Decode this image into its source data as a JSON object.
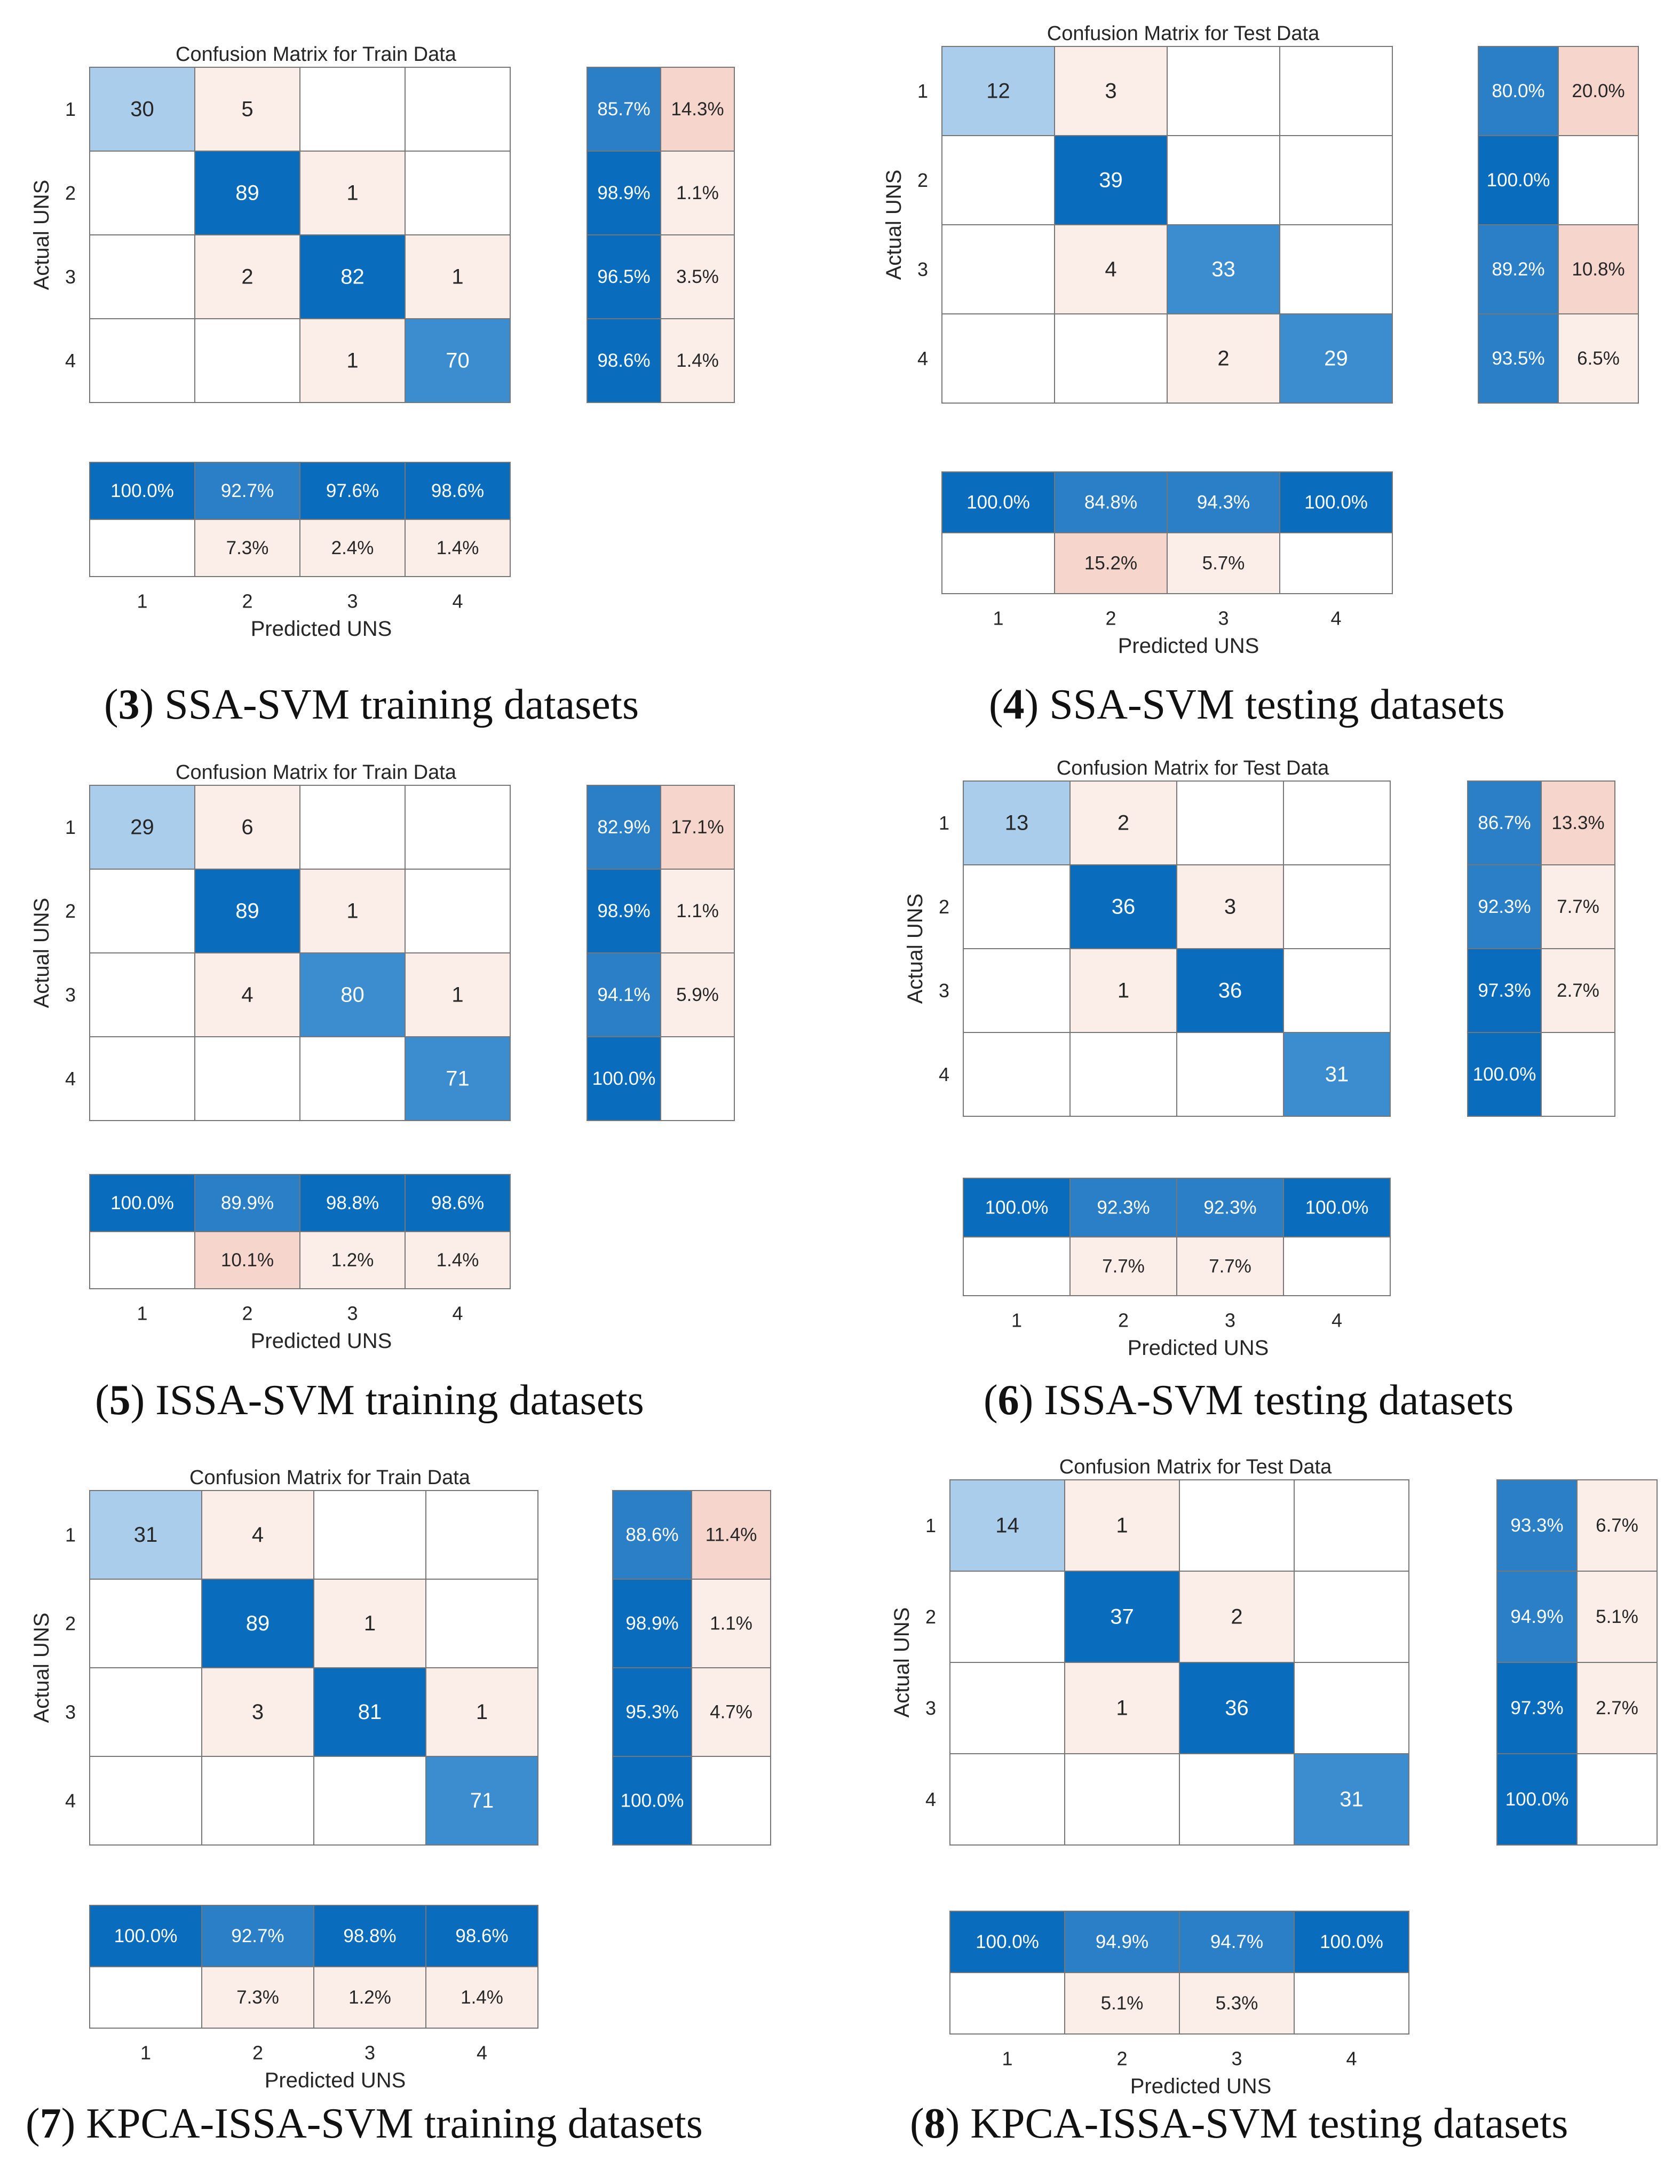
{
  "chart_data": [
    {
      "type": "heatmap",
      "title": "Confusion Matrix for Train Data",
      "xlabel": "Predicted UNS",
      "ylabel": "Actual UNS",
      "classes": [
        "1",
        "2",
        "3",
        "4"
      ],
      "matrix": [
        [
          30,
          5,
          null,
          null
        ],
        [
          null,
          89,
          1,
          null
        ],
        [
          null,
          2,
          82,
          1
        ],
        [
          null,
          null,
          1,
          70
        ]
      ],
      "row_summary": [
        [
          "85.7%",
          "14.3%"
        ],
        [
          "98.9%",
          "1.1%"
        ],
        [
          "96.5%",
          "3.5%"
        ],
        [
          "98.6%",
          "1.4%"
        ]
      ],
      "col_summary": [
        [
          "100.0%",
          ""
        ],
        [
          "92.7%",
          "7.3%"
        ],
        [
          "97.6%",
          "2.4%"
        ],
        [
          "98.6%",
          "1.4%"
        ]
      ],
      "caption": {
        "num": "3",
        "text": " SSA-SVM training datasets"
      }
    },
    {
      "type": "heatmap",
      "title": "Confusion Matrix for Test Data",
      "xlabel": "Predicted UNS",
      "ylabel": "Actual UNS",
      "classes": [
        "1",
        "2",
        "3",
        "4"
      ],
      "matrix": [
        [
          12,
          3,
          null,
          null
        ],
        [
          null,
          39,
          null,
          null
        ],
        [
          null,
          4,
          33,
          null
        ],
        [
          null,
          null,
          2,
          29
        ]
      ],
      "row_summary": [
        [
          "80.0%",
          "20.0%"
        ],
        [
          "100.0%",
          ""
        ],
        [
          "89.2%",
          "10.8%"
        ],
        [
          "93.5%",
          "6.5%"
        ]
      ],
      "col_summary": [
        [
          "100.0%",
          ""
        ],
        [
          "84.8%",
          "15.2%"
        ],
        [
          "94.3%",
          "5.7%"
        ],
        [
          "100.0%",
          ""
        ]
      ],
      "caption": {
        "num": "4",
        "text": " SSA-SVM testing datasets"
      }
    },
    {
      "type": "heatmap",
      "title": "Confusion Matrix for Train Data",
      "xlabel": "Predicted UNS",
      "ylabel": "Actual UNS",
      "classes": [
        "1",
        "2",
        "3",
        "4"
      ],
      "matrix": [
        [
          29,
          6,
          null,
          null
        ],
        [
          null,
          89,
          1,
          null
        ],
        [
          null,
          4,
          80,
          1
        ],
        [
          null,
          null,
          null,
          71
        ]
      ],
      "row_summary": [
        [
          "82.9%",
          "17.1%"
        ],
        [
          "98.9%",
          "1.1%"
        ],
        [
          "94.1%",
          "5.9%"
        ],
        [
          "100.0%",
          ""
        ]
      ],
      "col_summary": [
        [
          "100.0%",
          ""
        ],
        [
          "89.9%",
          "10.1%"
        ],
        [
          "98.8%",
          "1.2%"
        ],
        [
          "98.6%",
          "1.4%"
        ]
      ],
      "caption": {
        "num": "5",
        "text": " ISSA-SVM training datasets"
      }
    },
    {
      "type": "heatmap",
      "title": "Confusion Matrix for Test Data",
      "xlabel": "Predicted UNS",
      "ylabel": "Actual UNS",
      "classes": [
        "1",
        "2",
        "3",
        "4"
      ],
      "matrix": [
        [
          13,
          2,
          null,
          null
        ],
        [
          null,
          36,
          3,
          null
        ],
        [
          null,
          1,
          36,
          null
        ],
        [
          null,
          null,
          null,
          31
        ]
      ],
      "row_summary": [
        [
          "86.7%",
          "13.3%"
        ],
        [
          "92.3%",
          "7.7%"
        ],
        [
          "97.3%",
          "2.7%"
        ],
        [
          "100.0%",
          ""
        ]
      ],
      "col_summary": [
        [
          "100.0%",
          ""
        ],
        [
          "92.3%",
          "7.7%"
        ],
        [
          "92.3%",
          "7.7%"
        ],
        [
          "100.0%",
          ""
        ]
      ],
      "caption": {
        "num": "6",
        "text": " ISSA-SVM testing datasets"
      }
    },
    {
      "type": "heatmap",
      "title": "Confusion Matrix for Train Data",
      "xlabel": "Predicted UNS",
      "ylabel": "Actual UNS",
      "classes": [
        "1",
        "2",
        "3",
        "4"
      ],
      "matrix": [
        [
          31,
          4,
          null,
          null
        ],
        [
          null,
          89,
          1,
          null
        ],
        [
          null,
          3,
          81,
          1
        ],
        [
          null,
          null,
          null,
          71
        ]
      ],
      "row_summary": [
        [
          "88.6%",
          "11.4%"
        ],
        [
          "98.9%",
          "1.1%"
        ],
        [
          "95.3%",
          "4.7%"
        ],
        [
          "100.0%",
          ""
        ]
      ],
      "col_summary": [
        [
          "100.0%",
          ""
        ],
        [
          "92.7%",
          "7.3%"
        ],
        [
          "98.8%",
          "1.2%"
        ],
        [
          "98.6%",
          "1.4%"
        ]
      ],
      "caption": {
        "num": "7",
        "text": " KPCA-ISSA-SVM training datasets"
      }
    },
    {
      "type": "heatmap",
      "title": "Confusion Matrix for Test Data",
      "xlabel": "Predicted UNS",
      "ylabel": "Actual UNS",
      "classes": [
        "1",
        "2",
        "3",
        "4"
      ],
      "matrix": [
        [
          14,
          1,
          null,
          null
        ],
        [
          null,
          37,
          2,
          null
        ],
        [
          null,
          1,
          36,
          null
        ],
        [
          null,
          null,
          null,
          31
        ]
      ],
      "row_summary": [
        [
          "93.3%",
          "6.7%"
        ],
        [
          "94.9%",
          "5.1%"
        ],
        [
          "97.3%",
          "2.7%"
        ],
        [
          "100.0%",
          ""
        ]
      ],
      "col_summary": [
        [
          "100.0%",
          ""
        ],
        [
          "94.9%",
          "5.1%"
        ],
        [
          "94.7%",
          "5.3%"
        ],
        [
          "100.0%",
          ""
        ]
      ],
      "caption": {
        "num": "8",
        "text": " KPCA-ISSA-SVM testing datasets"
      }
    }
  ],
  "colors": {
    "diag_dark": "#0a6cbd",
    "diag_light": "#a9cdea",
    "offdiag_tint": "#fbede8",
    "offdiag_strong": "#f6d6cc",
    "grid": "#777777",
    "text_dark": "#262626",
    "text_light": "#ffffff"
  }
}
